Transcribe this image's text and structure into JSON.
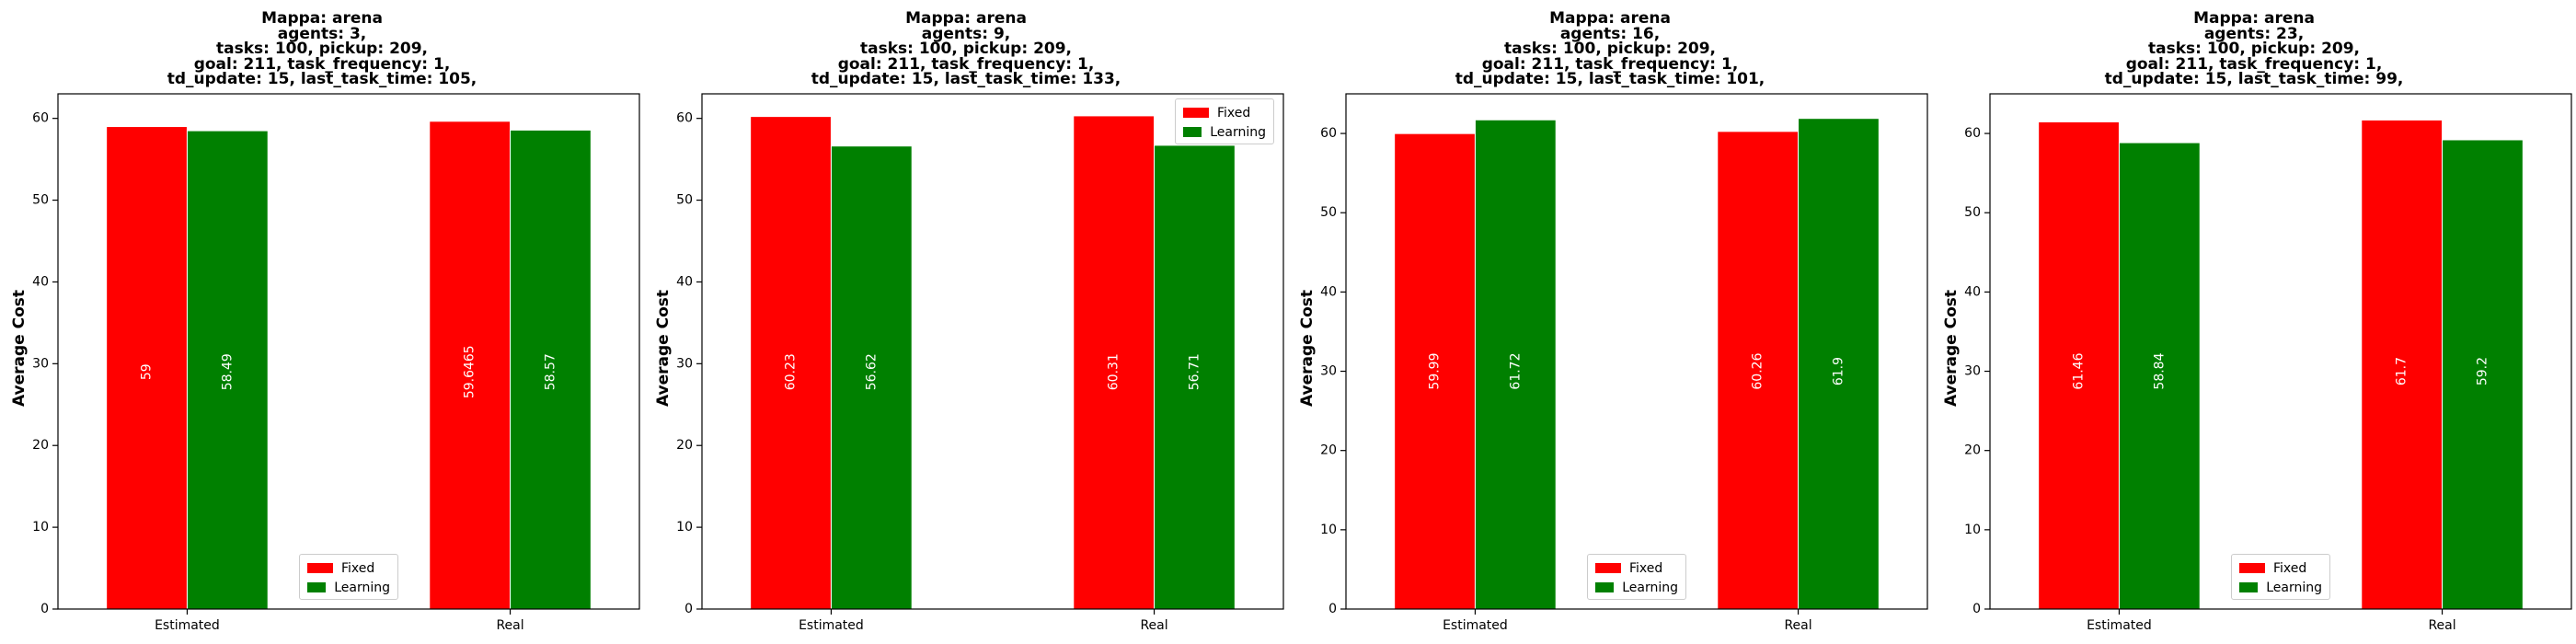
{
  "chart_data": [
    {
      "type": "bar",
      "title_lines": [
        "Mappa: arena",
        "agents: 3,",
        "tasks: 100, pickup: 209,",
        "goal: 211, task_frequency: 1,",
        "td_update: 15, last_task_time: 105,"
      ],
      "ylabel": "Average Cost",
      "categories": [
        "Estimated",
        "Real"
      ],
      "ylim": [
        0,
        63
      ],
      "yticks": [
        0,
        10,
        20,
        30,
        40,
        50,
        60
      ],
      "series": [
        {
          "name": "Fixed",
          "color": "#ff0000",
          "values": [
            59,
            59.6465
          ],
          "labels": [
            "59",
            "59.6465"
          ]
        },
        {
          "name": "Learning",
          "color": "#008000",
          "values": [
            58.49,
            58.57
          ],
          "labels": [
            "58.49",
            "58.57"
          ]
        }
      ],
      "legend_loc": "lower center"
    },
    {
      "type": "bar",
      "title_lines": [
        "Mappa: arena",
        "agents: 9,",
        "tasks: 100, pickup: 209,",
        "goal: 211, task_frequency: 1,",
        "td_update: 15, last_task_time: 133,"
      ],
      "ylabel": "Average Cost",
      "categories": [
        "Estimated",
        "Real"
      ],
      "ylim": [
        0,
        63
      ],
      "yticks": [
        0,
        10,
        20,
        30,
        40,
        50,
        60
      ],
      "series": [
        {
          "name": "Fixed",
          "color": "#ff0000",
          "values": [
            60.23,
            60.31
          ],
          "labels": [
            "60.23",
            "60.31"
          ]
        },
        {
          "name": "Learning",
          "color": "#008000",
          "values": [
            56.62,
            56.71
          ],
          "labels": [
            "56.62",
            "56.71"
          ]
        }
      ],
      "legend_loc": "upper right"
    },
    {
      "type": "bar",
      "title_lines": [
        "Mappa: arena",
        "agents: 16,",
        "tasks: 100, pickup: 209,",
        "goal: 211, task_frequency: 1,",
        "td_update: 15, last_task_time: 101,"
      ],
      "ylabel": "Average Cost",
      "categories": [
        "Estimated",
        "Real"
      ],
      "ylim": [
        0,
        65
      ],
      "yticks": [
        0,
        10,
        20,
        30,
        40,
        50,
        60
      ],
      "series": [
        {
          "name": "Fixed",
          "color": "#ff0000",
          "values": [
            59.99,
            60.26
          ],
          "labels": [
            "59.99",
            "60.26"
          ]
        },
        {
          "name": "Learning",
          "color": "#008000",
          "values": [
            61.72,
            61.9
          ],
          "labels": [
            "61.72",
            "61.9"
          ]
        }
      ],
      "legend_loc": "lower center"
    },
    {
      "type": "bar",
      "title_lines": [
        "Mappa: arena",
        "agents: 23,",
        "tasks: 100, pickup: 209,",
        "goal: 211, task_frequency: 1,",
        "td_update: 15, last_task_time: 99,"
      ],
      "ylabel": "Average Cost",
      "categories": [
        "Estimated",
        "Real"
      ],
      "ylim": [
        0,
        65
      ],
      "yticks": [
        0,
        10,
        20,
        30,
        40,
        50,
        60
      ],
      "series": [
        {
          "name": "Fixed",
          "color": "#ff0000",
          "values": [
            61.46,
            61.7
          ],
          "labels": [
            "61.46",
            "61.7"
          ]
        },
        {
          "name": "Learning",
          "color": "#008000",
          "values": [
            58.84,
            59.2
          ],
          "labels": [
            "58.84",
            "59.2"
          ]
        }
      ],
      "legend_loc": "lower center"
    }
  ]
}
